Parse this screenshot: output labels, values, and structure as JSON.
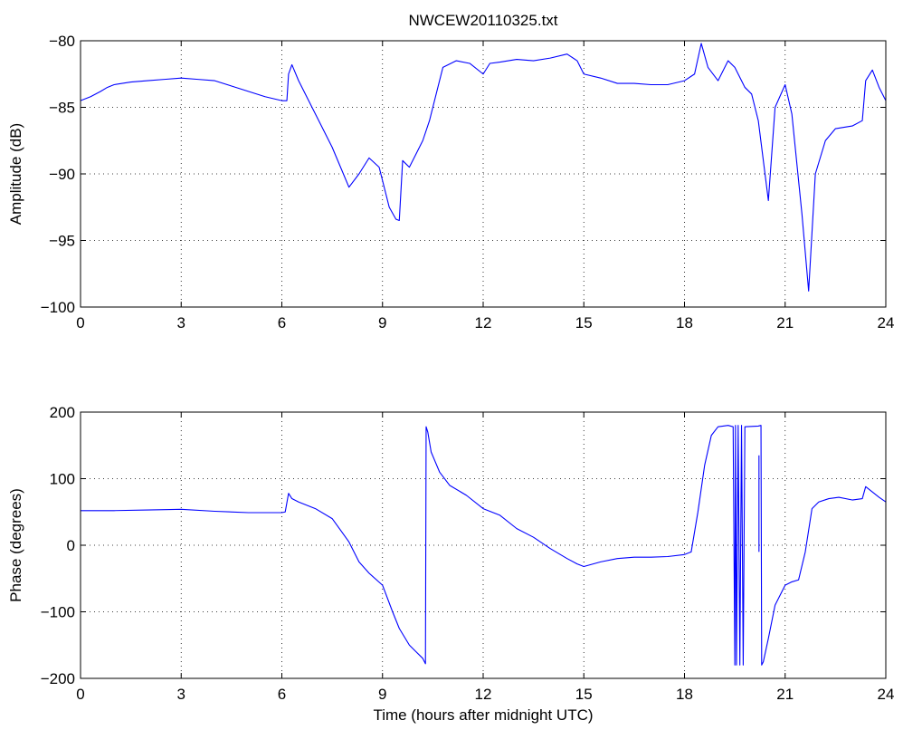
{
  "figure": {
    "title": "NWCEW20110325.txt",
    "line_color": "#0000ff",
    "grid": true,
    "grid_style": "dotted"
  },
  "chart_data": [
    {
      "type": "line",
      "title": "NWCEW20110325.txt",
      "xlabel": "",
      "ylabel": "Amplitude (dB)",
      "xlim": [
        0,
        24
      ],
      "ylim": [
        -100,
        -80
      ],
      "xticks": [
        0,
        3,
        6,
        9,
        12,
        15,
        18,
        21,
        24
      ],
      "yticks": [
        -100,
        -95,
        -90,
        -85,
        -80
      ],
      "series": [
        {
          "color": "#0000ff",
          "x": [
            0,
            0.3,
            0.6,
            0.8,
            1.0,
            1.5,
            2.0,
            2.5,
            3.0,
            3.5,
            4.0,
            4.5,
            5.0,
            5.5,
            6.0,
            6.15,
            6.2,
            6.3,
            6.5,
            7.0,
            7.5,
            8.0,
            8.3,
            8.6,
            8.9,
            9.2,
            9.4,
            9.5,
            9.6,
            9.8,
            10.0,
            10.2,
            10.4,
            10.6,
            10.8,
            11.2,
            11.6,
            12.0,
            12.2,
            12.5,
            13.0,
            13.5,
            14.0,
            14.5,
            14.8,
            15.0,
            15.5,
            16.0,
            16.5,
            17.0,
            17.5,
            18.0,
            18.3,
            18.5,
            18.7,
            19.0,
            19.3,
            19.5,
            19.8,
            20.0,
            20.2,
            20.4,
            20.5,
            20.7,
            21.0,
            21.2,
            21.5,
            21.7,
            21.9,
            22.2,
            22.5,
            23.0,
            23.3,
            23.4,
            23.6,
            23.8,
            24.0
          ],
          "y": [
            -84.5,
            -84.2,
            -83.8,
            -83.5,
            -83.3,
            -83.1,
            -83.0,
            -82.9,
            -82.8,
            -82.9,
            -83.0,
            -83.4,
            -83.8,
            -84.2,
            -84.5,
            -84.5,
            -82.5,
            -81.8,
            -83.0,
            -85.5,
            -88.0,
            -91.0,
            -90.0,
            -88.8,
            -89.5,
            -92.5,
            -93.4,
            -93.5,
            -89.0,
            -89.5,
            -88.5,
            -87.5,
            -86.0,
            -84.0,
            -82.0,
            -81.5,
            -81.7,
            -82.5,
            -81.7,
            -81.6,
            -81.4,
            -81.5,
            -81.3,
            -81.0,
            -81.5,
            -82.5,
            -82.8,
            -83.2,
            -83.2,
            -83.3,
            -83.3,
            -83.0,
            -82.5,
            -80.2,
            -82.0,
            -83.0,
            -81.5,
            -82.0,
            -83.5,
            -84.0,
            -86.0,
            -90.0,
            -92.0,
            -85.0,
            -83.3,
            -85.5,
            -93.0,
            -98.8,
            -90.0,
            -87.5,
            -86.6,
            -86.4,
            -86.0,
            -83.0,
            -82.2,
            -83.5,
            -84.5
          ]
        }
      ]
    },
    {
      "type": "line",
      "title": "",
      "xlabel": "Time (hours after midnight UTC)",
      "ylabel": "Phase (degrees)",
      "xlim": [
        0,
        24
      ],
      "ylim": [
        -200,
        200
      ],
      "xticks": [
        0,
        3,
        6,
        9,
        12,
        15,
        18,
        21,
        24
      ],
      "yticks": [
        -200,
        -100,
        0,
        100,
        200
      ],
      "series": [
        {
          "color": "#0000ff",
          "x": [
            0,
            1.0,
            2.0,
            3.0,
            4.0,
            5.0,
            6.0,
            6.1,
            6.2,
            6.3,
            6.5,
            7.0,
            7.5,
            8.0,
            8.3,
            8.6,
            9.0,
            9.3,
            9.5,
            9.8,
            10.0,
            10.2,
            10.28,
            10.3,
            10.35,
            10.45,
            10.7,
            11.0,
            11.5,
            12.0,
            12.5,
            13.0,
            13.5,
            14.0,
            14.5,
            14.8,
            15.0,
            15.5,
            16.0,
            16.5,
            17.0,
            17.5,
            18.0,
            18.2,
            18.4,
            18.6,
            18.8,
            19.0,
            19.3,
            19.45,
            19.5,
            19.52,
            19.55,
            19.6,
            19.65,
            19.7,
            19.75,
            19.8,
            20.2,
            20.28,
            20.3,
            20.35,
            20.5,
            20.7,
            21.0,
            21.2,
            21.4,
            21.6,
            21.8,
            22.0,
            22.3,
            22.6,
            23.0,
            23.3,
            23.4,
            23.6,
            23.8,
            24.0
          ],
          "y": [
            52,
            52,
            53,
            54,
            51,
            49,
            49,
            50,
            78,
            70,
            65,
            55,
            40,
            5,
            -25,
            -42,
            -60,
            -100,
            -125,
            -150,
            -160,
            -170,
            -178,
            178,
            170,
            140,
            110,
            90,
            75,
            55,
            45,
            25,
            12,
            -5,
            -20,
            -28,
            -32,
            -25,
            -20,
            -18,
            -18,
            -17,
            -14,
            -10,
            50,
            120,
            165,
            178,
            180,
            178,
            -180,
            180,
            -180,
            180,
            -180,
            180,
            -180,
            178,
            179,
            180,
            -180,
            -175,
            -140,
            -90,
            -60,
            -55,
            -52,
            -10,
            55,
            65,
            70,
            72,
            68,
            70,
            88,
            80,
            72,
            65
          ]
        },
        {
          "color": "#0000ff",
          "x": [
            20.22,
            20.22
          ],
          "y": [
            135,
            -10
          ]
        }
      ]
    }
  ]
}
